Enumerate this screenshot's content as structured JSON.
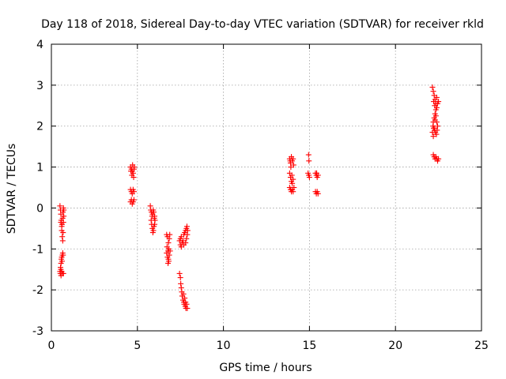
{
  "chart_data": {
    "type": "scatter",
    "title": "Day 118 of 2018, Sidereal Day-to-day VTEC variation (SDTVAR) for receiver rkld",
    "xlabel": "GPS time / hours",
    "ylabel": "SDTVAR / TECUs",
    "xlim": [
      0,
      25
    ],
    "ylim": [
      -3,
      4
    ],
    "xticks": [
      "0",
      "5",
      "10",
      "15",
      "20",
      "25"
    ],
    "yticks": [
      "-3",
      "-2",
      "-1",
      "0",
      "1",
      "2",
      "3",
      "4"
    ],
    "grid": true,
    "marker": "plus",
    "series": [
      {
        "name": "SDTVAR",
        "color": "#ff0000",
        "points": [
          [
            0.5,
            0.05
          ],
          [
            0.53,
            -0.05
          ],
          [
            0.55,
            -0.15
          ],
          [
            0.57,
            -0.3
          ],
          [
            0.6,
            -0.45
          ],
          [
            0.62,
            -0.4
          ],
          [
            0.65,
            -0.25
          ],
          [
            0.67,
            -0.1
          ],
          [
            0.7,
            0.0
          ],
          [
            0.72,
            -0.05
          ],
          [
            0.55,
            -0.35
          ],
          [
            0.6,
            -0.55
          ],
          [
            0.63,
            -0.7
          ],
          [
            0.66,
            -0.8
          ],
          [
            0.68,
            -0.6
          ],
          [
            0.7,
            -0.35
          ],
          [
            0.72,
            -0.2
          ],
          [
            0.5,
            -1.55
          ],
          [
            0.53,
            -1.45
          ],
          [
            0.56,
            -1.35
          ],
          [
            0.58,
            -1.25
          ],
          [
            0.6,
            -1.2
          ],
          [
            0.62,
            -1.3
          ],
          [
            0.64,
            -1.15
          ],
          [
            0.66,
            -1.1
          ],
          [
            0.68,
            -1.15
          ],
          [
            0.52,
            -1.6
          ],
          [
            0.56,
            -1.65
          ],
          [
            0.6,
            -1.55
          ],
          [
            0.65,
            -1.6
          ],
          [
            0.7,
            -1.6
          ],
          [
            0.55,
            -1.5
          ],
          [
            4.6,
            1.0
          ],
          [
            4.65,
            0.95
          ],
          [
            4.7,
            0.9
          ],
          [
            4.72,
            1.05
          ],
          [
            4.75,
            0.85
          ],
          [
            4.78,
            0.75
          ],
          [
            4.8,
            0.95
          ],
          [
            4.82,
            1.0
          ],
          [
            4.68,
            0.8
          ],
          [
            4.62,
            0.9
          ],
          [
            4.6,
            0.45
          ],
          [
            4.65,
            0.4
          ],
          [
            4.7,
            0.35
          ],
          [
            4.75,
            0.45
          ],
          [
            4.8,
            0.4
          ],
          [
            4.6,
            0.15
          ],
          [
            4.65,
            0.2
          ],
          [
            4.7,
            0.1
          ],
          [
            4.75,
            0.15
          ],
          [
            4.8,
            0.2
          ],
          [
            5.75,
            0.05
          ],
          [
            5.78,
            -0.05
          ],
          [
            5.82,
            -0.1
          ],
          [
            5.85,
            -0.2
          ],
          [
            5.88,
            -0.15
          ],
          [
            5.92,
            -0.05
          ],
          [
            5.95,
            -0.1
          ],
          [
            6.0,
            -0.2
          ],
          [
            6.02,
            -0.3
          ],
          [
            5.98,
            -0.25
          ],
          [
            5.8,
            -0.3
          ],
          [
            5.83,
            -0.4
          ],
          [
            5.87,
            -0.5
          ],
          [
            5.9,
            -0.6
          ],
          [
            5.93,
            -0.55
          ],
          [
            5.96,
            -0.45
          ],
          [
            6.0,
            -0.4
          ],
          [
            6.7,
            -0.65
          ],
          [
            6.75,
            -0.7
          ],
          [
            6.8,
            -0.85
          ],
          [
            6.72,
            -0.95
          ],
          [
            6.78,
            -1.05
          ],
          [
            6.82,
            -1.0
          ],
          [
            6.85,
            -0.75
          ],
          [
            6.88,
            -0.65
          ],
          [
            6.7,
            -1.1
          ],
          [
            6.75,
            -1.2
          ],
          [
            6.8,
            -1.25
          ],
          [
            6.85,
            -1.15
          ],
          [
            6.9,
            -1.05
          ],
          [
            6.78,
            -1.35
          ],
          [
            6.82,
            -1.3
          ],
          [
            7.45,
            -0.8
          ],
          [
            7.5,
            -0.75
          ],
          [
            7.55,
            -0.7
          ],
          [
            7.6,
            -0.85
          ],
          [
            7.65,
            -0.8
          ],
          [
            7.7,
            -0.65
          ],
          [
            7.75,
            -0.6
          ],
          [
            7.8,
            -0.55
          ],
          [
            7.85,
            -0.5
          ],
          [
            7.88,
            -0.45
          ],
          [
            7.5,
            -0.9
          ],
          [
            7.55,
            -0.95
          ],
          [
            7.6,
            -0.85
          ],
          [
            7.7,
            -0.9
          ],
          [
            7.8,
            -0.85
          ],
          [
            7.85,
            -0.75
          ],
          [
            7.9,
            -0.65
          ],
          [
            7.92,
            -0.55
          ],
          [
            7.45,
            -1.6
          ],
          [
            7.5,
            -1.7
          ],
          [
            7.52,
            -1.85
          ],
          [
            7.55,
            -1.95
          ],
          [
            7.58,
            -2.05
          ],
          [
            7.6,
            -2.15
          ],
          [
            7.65,
            -2.25
          ],
          [
            7.68,
            -2.1
          ],
          [
            7.7,
            -2.3
          ],
          [
            7.72,
            -2.35
          ],
          [
            7.75,
            -2.2
          ],
          [
            7.78,
            -2.4
          ],
          [
            7.8,
            -2.3
          ],
          [
            7.82,
            -2.45
          ],
          [
            7.86,
            -2.35
          ],
          [
            7.9,
            -2.45
          ],
          [
            13.85,
            1.2
          ],
          [
            13.9,
            1.1
          ],
          [
            13.95,
            1.25
          ],
          [
            14.0,
            1.15
          ],
          [
            14.05,
            1.2
          ],
          [
            14.08,
            1.05
          ],
          [
            13.92,
            1.0
          ],
          [
            13.88,
            1.15
          ],
          [
            13.85,
            0.85
          ],
          [
            13.9,
            0.75
          ],
          [
            13.95,
            0.65
          ],
          [
            14.0,
            0.6
          ],
          [
            14.05,
            0.7
          ],
          [
            13.98,
            0.8
          ],
          [
            13.85,
            0.5
          ],
          [
            13.9,
            0.45
          ],
          [
            13.95,
            0.4
          ],
          [
            14.0,
            0.45
          ],
          [
            14.05,
            0.4
          ],
          [
            14.1,
            0.5
          ],
          [
            14.95,
            1.3
          ],
          [
            14.97,
            1.15
          ],
          [
            14.92,
            0.85
          ],
          [
            14.96,
            0.8
          ],
          [
            15.0,
            0.75
          ],
          [
            15.35,
            0.85
          ],
          [
            15.4,
            0.8
          ],
          [
            15.45,
            0.75
          ],
          [
            15.42,
            0.85
          ],
          [
            15.5,
            0.8
          ],
          [
            15.35,
            0.4
          ],
          [
            15.4,
            0.35
          ],
          [
            15.45,
            0.4
          ],
          [
            15.5,
            0.35
          ],
          [
            22.15,
            2.95
          ],
          [
            22.2,
            2.85
          ],
          [
            22.25,
            2.75
          ],
          [
            22.3,
            2.65
          ],
          [
            22.35,
            2.55
          ],
          [
            22.4,
            2.45
          ],
          [
            22.45,
            2.55
          ],
          [
            22.5,
            2.6
          ],
          [
            22.35,
            2.4
          ],
          [
            22.3,
            2.3
          ],
          [
            22.25,
            2.2
          ],
          [
            22.2,
            2.1
          ],
          [
            22.18,
            2.0
          ],
          [
            22.22,
            1.95
          ],
          [
            22.28,
            1.9
          ],
          [
            22.32,
            1.85
          ],
          [
            22.38,
            1.8
          ],
          [
            22.42,
            1.9
          ],
          [
            22.45,
            2.0
          ],
          [
            22.4,
            2.1
          ],
          [
            22.15,
            1.85
          ],
          [
            22.2,
            1.75
          ],
          [
            22.25,
            1.95
          ],
          [
            22.3,
            2.15
          ],
          [
            22.35,
            2.25
          ],
          [
            22.28,
            2.5
          ],
          [
            22.22,
            2.6
          ],
          [
            22.4,
            2.7
          ],
          [
            22.2,
            1.3
          ],
          [
            22.25,
            1.25
          ],
          [
            22.3,
            1.2
          ],
          [
            22.35,
            1.25
          ],
          [
            22.4,
            1.2
          ],
          [
            22.45,
            1.15
          ],
          [
            22.5,
            1.2
          ]
        ]
      }
    ]
  }
}
